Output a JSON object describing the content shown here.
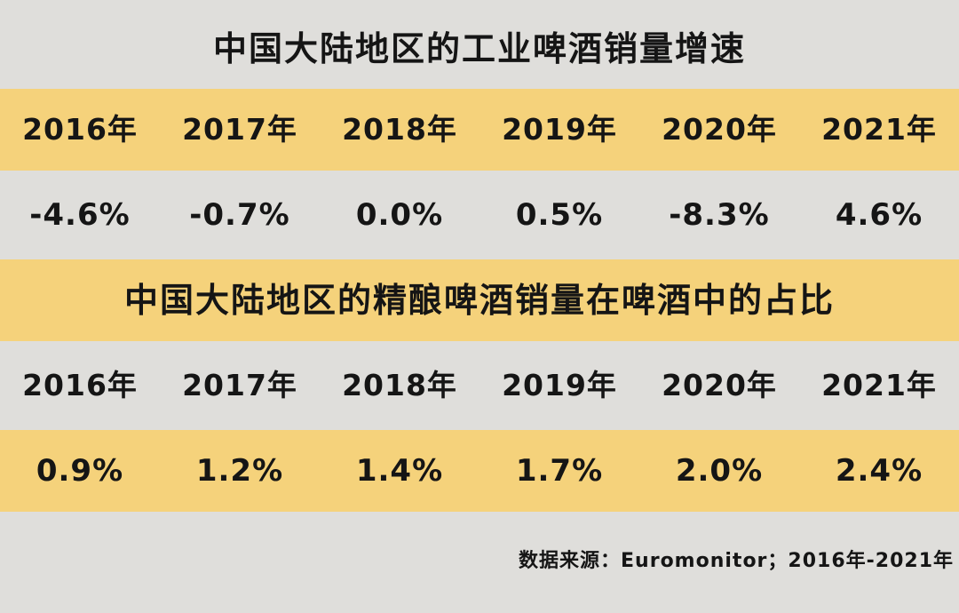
{
  "chart_data": {
    "type": "table",
    "tables": [
      {
        "title": "中国大陆地区的工业啤酒销量增速",
        "columns": [
          "2016年",
          "2017年",
          "2018年",
          "2019年",
          "2020年",
          "2021年"
        ],
        "values": [
          "-4.6%",
          "-0.7%",
          "0.0%",
          "0.5%",
          "-8.3%",
          "4.6%"
        ]
      },
      {
        "title": "中国大陆地区的精酿啤酒销量在啤酒中的占比",
        "columns": [
          "2016年",
          "2017年",
          "2018年",
          "2019年",
          "2020年",
          "2021年"
        ],
        "values": [
          "0.9%",
          "1.2%",
          "1.4%",
          "1.7%",
          "2.0%",
          "2.4%"
        ]
      }
    ]
  },
  "source_note": "数据来源：Euromonitor；2016年-2021年",
  "colors": {
    "background": "#dfdedb",
    "highlight": "#f5d27b",
    "text": "#151515"
  }
}
